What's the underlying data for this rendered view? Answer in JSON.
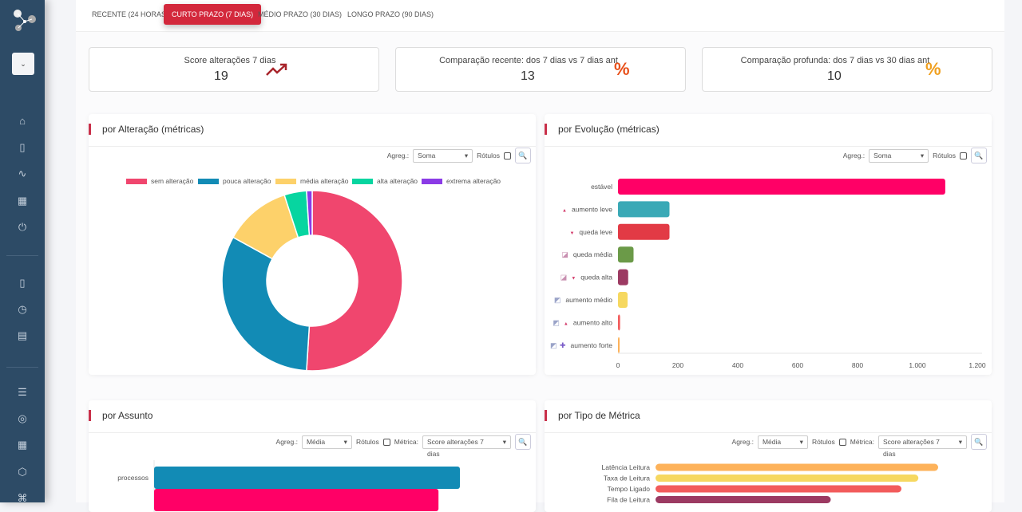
{
  "sidebar": {
    "selector_icon": "chevron-down-icon",
    "items": [
      "home-icon",
      "map-icon",
      "activity-icon",
      "grid-icon",
      "power-icon",
      "map-icon",
      "clock-icon",
      "file-icon",
      "server-icon",
      "target-icon",
      "grid-icon",
      "box-icon",
      "command-icon"
    ]
  },
  "tabs": [
    {
      "label": "RECENTE (24 HORAS)",
      "active": false
    },
    {
      "label": "CURTO PRAZO (7 DIAS)",
      "active": true
    },
    {
      "label": "MÉDIO PRAZO (30 DIAS)",
      "active": false
    },
    {
      "label": "LONGO PRAZO (90 DIAS)",
      "active": false
    }
  ],
  "accent": "#d3283c",
  "kpis": [
    {
      "label": "Score alterações 7 dias",
      "value": "19",
      "icon": "trending-up-icon",
      "icon_color": "#a8242b"
    },
    {
      "label": "Comparação recente: dos 7 dias vs 7 dias ant",
      "value": "13",
      "icon": "percent-icon",
      "icon_color": "#e8501a"
    },
    {
      "label": "Comparação profunda: dos 7 dias vs 30 dias ant",
      "value": "10",
      "icon": "percent-icon",
      "icon_color": "#f0a020"
    }
  ],
  "controls": {
    "agreg_label": "Agreg.:",
    "rotulos_label": "Rótulos",
    "metrica_label": "Métrica:",
    "sum": "Soma",
    "avg": "Média",
    "metric": "Score alterações 7 dias"
  },
  "panels": {
    "alteracao": "por Alteração (métricas)",
    "evolucao": "por Evolução (métricas)",
    "assunto": "por Assunto",
    "tipo": "por Tipo de Métrica"
  },
  "chart_data": [
    {
      "type": "pie",
      "donut": true,
      "legend": "top",
      "categories": [
        "sem alteração",
        "pouca alteração",
        "média alteração",
        "alta alteração",
        "extrema alteração"
      ],
      "values": [
        51,
        32,
        12,
        4,
        1
      ],
      "colors": [
        "#f0466e",
        "#128bb5",
        "#fdd16a",
        "#07d5a0",
        "#8b3be6"
      ]
    },
    {
      "type": "bar",
      "orientation": "horizontal",
      "categories": [
        "estável",
        "aumento leve",
        "queda leve",
        "queda média",
        "queda alta",
        "aumento médio",
        "aumento alto",
        "aumento forte"
      ],
      "category_icons": [
        "",
        "triangle-up-icon",
        "triangle-down-icon",
        "chart-down-icon",
        "chart-down-icon triangle-down-icon",
        "chart-up-icon",
        "chart-up-icon triangle-up-icon",
        "chart-up-icon plus-icon"
      ],
      "values": [
        1093,
        172,
        172,
        52,
        34,
        32,
        7,
        5
      ],
      "colors": [
        "#ff0066",
        "#3aa9b6",
        "#e23a45",
        "#6b9a48",
        "#9c3a62",
        "#f6d860",
        "#f25b5b",
        "#fdb25a"
      ],
      "xlim": [
        0,
        1200
      ],
      "xticks": [
        "0",
        "200",
        "400",
        "600",
        "800",
        "1.000",
        "1.200"
      ]
    },
    {
      "type": "bar",
      "orientation": "horizontal",
      "categories": [
        "processos",
        ""
      ],
      "values": [
        100,
        93
      ],
      "colors": [
        "#128bb5",
        "#ff0066"
      ]
    },
    {
      "type": "bar",
      "orientation": "horizontal",
      "categories": [
        "Latência Leitura",
        "Taxa de Leitura",
        "Tempo Ligado",
        "Fila de Leitura"
      ],
      "values": [
        100,
        93,
        87,
        62
      ],
      "colors": [
        "#fdb25a",
        "#f6d860",
        "#f25b5b",
        "#9c3a62"
      ]
    }
  ]
}
